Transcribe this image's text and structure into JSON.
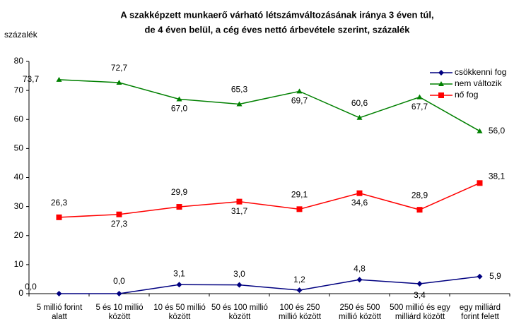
{
  "chart_data": {
    "type": "line",
    "title": "A szakképzett munkaerő várható létszámváltozásának iránya 3 éven túl,",
    "subtitle": "de 4 éven belül, a cég éves nettó árbevétele szerint, százalék",
    "y_label": "százalék",
    "categories": [
      "5 millió forint alatt",
      "5 és 10 millió között",
      "10 és 50 millió között",
      "50 és 100 millió között",
      "100 és 250 millió között",
      "250 és 500 millió között",
      "500 millió és egy milliárd között",
      "egy milliárd forint felett"
    ],
    "series": [
      {
        "name": "csökkenni fog",
        "color": "#000080",
        "marker": "diamond",
        "values": [
          0.0,
          0.0,
          3.1,
          3.0,
          1.2,
          4.8,
          3.4,
          5.9
        ],
        "value_labels": [
          "0,0",
          "0,0",
          "3,1",
          "3,0",
          "1,2",
          "4,8",
          "3,4",
          "5,9"
        ]
      },
      {
        "name": "nem változik",
        "color": "#008000",
        "marker": "triangle",
        "values": [
          73.7,
          72.7,
          67.0,
          65.3,
          69.7,
          60.6,
          67.7,
          56.0
        ],
        "value_labels": [
          "73,7",
          "72,7",
          "67,0",
          "65,3",
          "69,7",
          "60,6",
          "67,7",
          "56,0"
        ]
      },
      {
        "name": "nő fog",
        "color": "#ff0000",
        "marker": "square",
        "values": [
          26.3,
          27.3,
          29.9,
          31.7,
          29.1,
          34.6,
          28.9,
          38.1
        ],
        "value_labels": [
          "26,3",
          "27,3",
          "29,9",
          "31,7",
          "29,1",
          "34,6",
          "28,9",
          "38,1"
        ]
      }
    ],
    "ylim": [
      0,
      80
    ],
    "yticks": [
      0,
      10,
      20,
      30,
      40,
      50,
      60,
      70,
      80
    ],
    "legend": "top-right"
  }
}
